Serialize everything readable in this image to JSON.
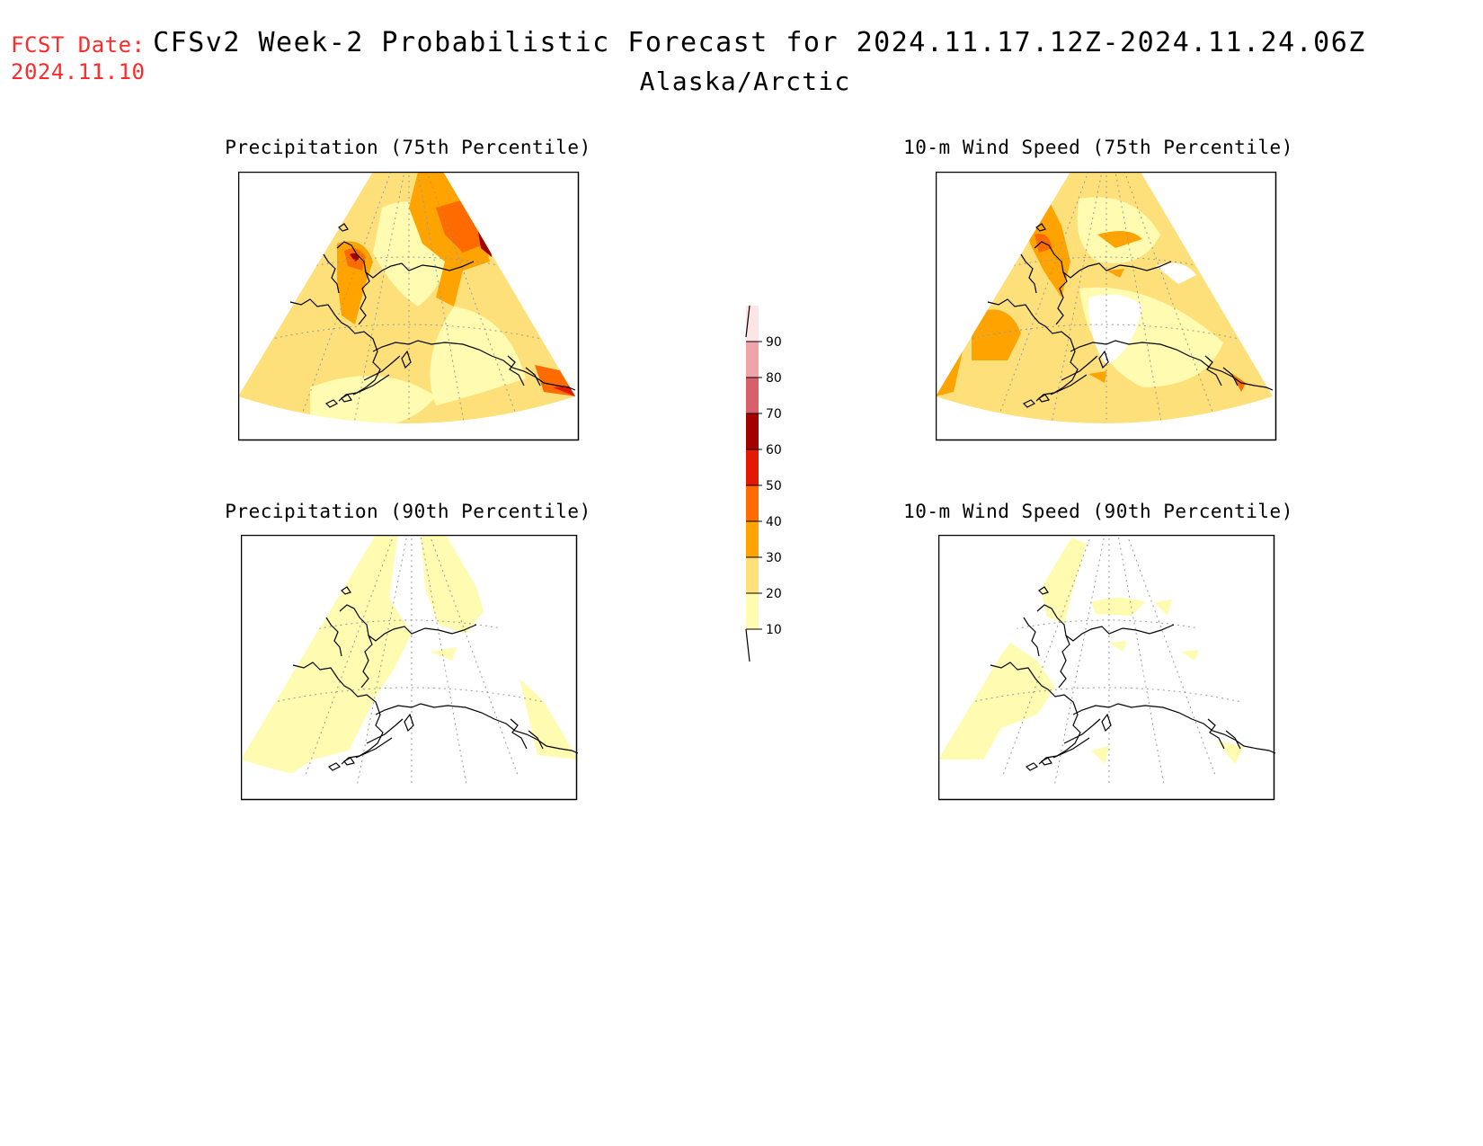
{
  "header": {
    "fcst_label": "FCST Date:",
    "fcst_date": "2024.11.10",
    "title": "CFSv2 Week-2 Probabilistic Forecast for 2024.11.17.12Z-2024.11.24.06Z",
    "region": "Alaska/Arctic"
  },
  "panels": [
    {
      "title": "Precipitation (75th Percentile)"
    },
    {
      "title": "10-m Wind Speed (75th Percentile)"
    },
    {
      "title": "Precipitation (90th Percentile)"
    },
    {
      "title": "10-m Wind Speed (90th Percentile)"
    }
  ],
  "colorbar": {
    "levels": [
      "10",
      "20",
      "30",
      "40",
      "50",
      "60",
      "70",
      "80",
      "90"
    ],
    "colors": [
      "#fffbb0",
      "#fee07a",
      "#fea300",
      "#ff6b00",
      "#e31a00",
      "#a50000",
      "#d8606a",
      "#f0a4a8",
      "#fde4e6"
    ]
  }
}
